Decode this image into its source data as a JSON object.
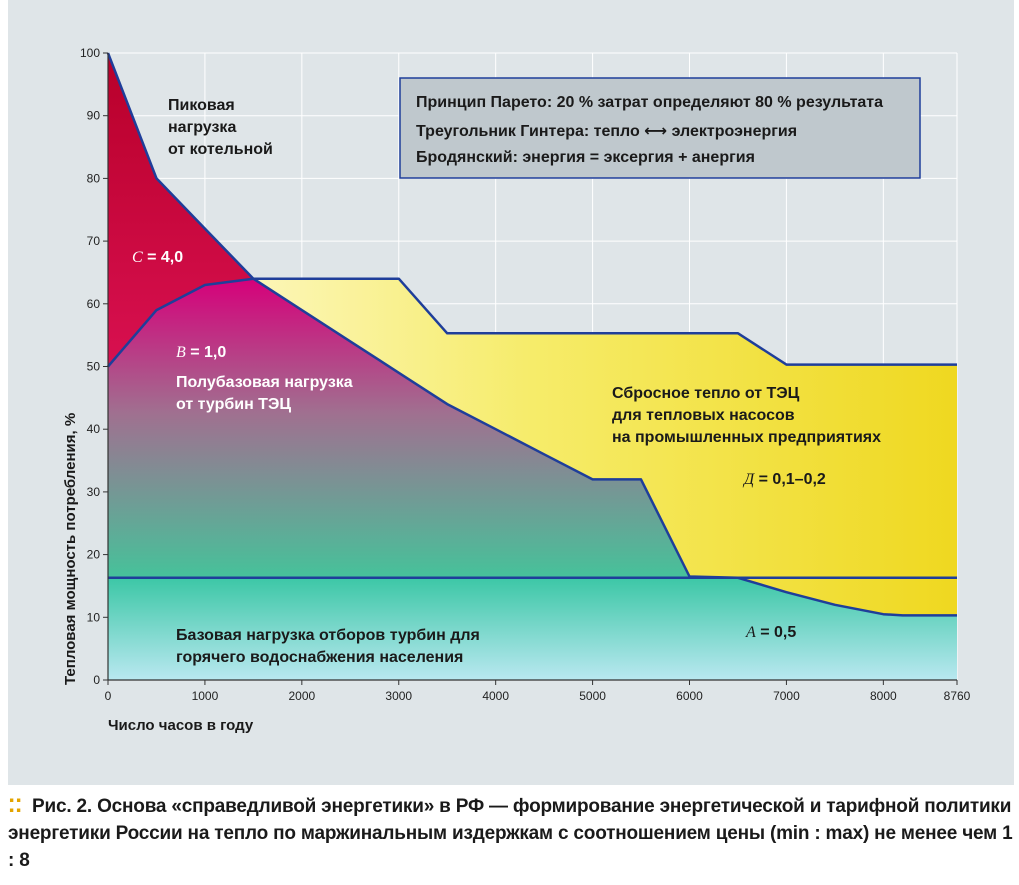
{
  "chart_data": {
    "type": "area",
    "xlabel": "Число часов в году",
    "ylabel": "Тепловая мощность потребления, %",
    "xlim": [
      0,
      8760
    ],
    "ylim": [
      0,
      100
    ],
    "x_ticks": [
      0,
      1000,
      2000,
      3000,
      4000,
      5000,
      6000,
      7000,
      8000,
      8760
    ],
    "y_ticks": [
      0,
      10,
      20,
      30,
      40,
      50,
      60,
      70,
      80,
      90,
      100
    ],
    "grid": true,
    "series": [
      {
        "values": [
          [
            0,
            100
          ],
          [
            500,
            80
          ],
          [
            1000,
            72
          ],
          [
            1500,
            64
          ],
          [
            2000,
            59
          ],
          [
            2500,
            54
          ],
          [
            3000,
            49
          ],
          [
            3500,
            44
          ],
          [
            4000,
            40
          ],
          [
            4500,
            36
          ],
          [
            5000,
            32
          ],
          [
            5500,
            32
          ],
          [
            6000,
            16.5
          ],
          [
            6500,
            16.3
          ],
          [
            7000,
            14
          ],
          [
            7500,
            12
          ],
          [
            8000,
            10.5
          ],
          [
            8200,
            10.3
          ],
          [
            8760,
            10.3
          ]
        ]
      },
      {
        "values": [
          [
            0,
            50
          ],
          [
            500,
            59
          ],
          [
            1000,
            63
          ],
          [
            1500,
            64
          ],
          [
            3000,
            64
          ],
          [
            3500,
            55.3
          ],
          [
            6500,
            55.3
          ],
          [
            7000,
            50.3
          ],
          [
            8760,
            50.3
          ]
        ]
      },
      {
        "values": [
          [
            0,
            16.3
          ],
          [
            8760,
            16.3
          ]
        ]
      }
    ],
    "annotations": [
      "Пиковая\nнагрузка\nот котельной",
      "C = 4,0",
      "B = 1,0",
      "Полубазовая нагрузка\nот турбин ТЭЦ",
      "Сбросное тепло от ТЭЦ\nдля тепловых насосов\nна промышленных предприятиях",
      "Д = 0,1–0,2",
      "A = 0,5",
      "Базовая нагрузка отборов турбин для\nгорячего водоснабжения населения"
    ],
    "legend_box": [
      "Принцип Парето: 20 % затрат определяют 80 % результата",
      "Треугольник Гинтера: тепло ⟷ электроэнергия",
      "Бродянский: энергия = эксергия + анергия"
    ]
  },
  "caption": {
    "lead": "Рис. 2.",
    "text": "Основа «справедливой энергетики» в РФ — формирование энергетической и тарифной политики энергетики России на тепло по маржинальным издержкам с соотношением цены (min : max) не менее чем 1 : 8"
  },
  "colors": {
    "peak": "#c8102e",
    "semi_base": "#d6007a",
    "base": "#3cc7a6",
    "waste_heat": "#f0e030",
    "line": "#1f3e9a",
    "background": "#dfe5e8"
  }
}
